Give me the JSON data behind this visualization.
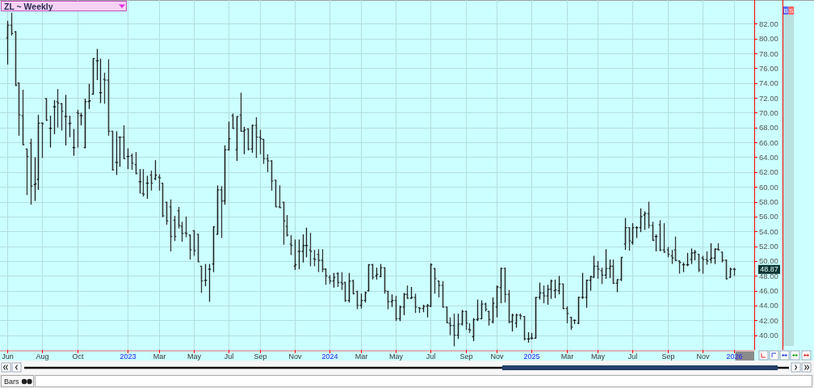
{
  "chart_data": {
    "type": "candlestick",
    "title": "ZL ~ Weekly",
    "grid": true,
    "x": [
      "2022-06-03",
      "2022-06-10",
      "2022-06-17",
      "2022-06-24",
      "2022-07-01",
      "2022-07-08",
      "2022-07-15",
      "2022-07-22",
      "2022-07-29",
      "2022-08-05",
      "2022-08-12",
      "2022-08-19",
      "2022-08-26",
      "2022-09-02",
      "2022-09-09",
      "2022-09-16",
      "2022-09-23",
      "2022-09-30",
      "2022-10-07",
      "2022-10-14",
      "2022-10-21",
      "2022-10-28",
      "2022-11-04",
      "2022-11-11",
      "2022-11-18",
      "2022-11-25",
      "2022-12-02",
      "2022-12-09",
      "2022-12-16",
      "2022-12-23",
      "2022-12-30",
      "2023-01-06",
      "2023-01-13",
      "2023-01-20",
      "2023-01-27",
      "2023-02-03",
      "2023-02-10",
      "2023-02-17",
      "2023-02-24",
      "2023-03-03",
      "2023-03-10",
      "2023-03-17",
      "2023-03-24",
      "2023-03-31",
      "2023-04-07",
      "2023-04-14",
      "2023-04-21",
      "2023-04-28",
      "2023-05-05",
      "2023-05-12",
      "2023-05-19",
      "2023-05-26",
      "2023-06-02",
      "2023-06-09",
      "2023-06-16",
      "2023-06-23",
      "2023-06-30",
      "2023-07-07",
      "2023-07-14",
      "2023-07-21",
      "2023-07-28",
      "2023-08-04",
      "2023-08-11",
      "2023-08-18",
      "2023-08-25",
      "2023-09-01",
      "2023-09-08",
      "2023-09-15",
      "2023-09-22",
      "2023-09-29",
      "2023-10-06",
      "2023-10-13",
      "2023-10-20",
      "2023-10-27",
      "2023-11-03",
      "2023-11-10",
      "2023-11-17",
      "2023-11-24",
      "2023-12-01",
      "2023-12-08",
      "2023-12-15",
      "2023-12-22",
      "2023-12-29",
      "2024-01-05",
      "2024-01-12",
      "2024-01-19",
      "2024-01-26",
      "2024-02-02",
      "2024-02-09",
      "2024-02-16",
      "2024-02-23",
      "2024-03-01",
      "2024-03-08",
      "2024-03-15",
      "2024-03-22",
      "2024-03-29",
      "2024-04-05",
      "2024-04-12",
      "2024-04-19",
      "2024-04-26",
      "2024-05-03",
      "2024-05-10",
      "2024-05-17",
      "2024-05-24",
      "2024-05-31",
      "2024-06-07",
      "2024-06-14",
      "2024-06-21",
      "2024-06-28",
      "2024-07-05",
      "2024-07-12",
      "2024-07-19",
      "2024-07-26",
      "2024-08-02",
      "2024-08-09",
      "2024-08-16",
      "2024-08-23",
      "2024-08-30",
      "2024-09-06",
      "2024-09-13",
      "2024-09-20",
      "2024-09-27",
      "2024-10-04",
      "2024-10-11",
      "2024-10-18",
      "2024-10-25",
      "2024-11-01",
      "2024-11-08",
      "2024-11-15",
      "2024-11-22",
      "2024-11-29",
      "2024-12-06",
      "2024-12-13",
      "2024-12-20",
      "2024-12-27",
      "2025-01-03",
      "2025-01-10",
      "2025-01-17",
      "2025-01-24",
      "2025-01-31",
      "2025-02-07",
      "2025-02-14",
      "2025-02-21",
      "2025-02-28",
      "2025-03-07",
      "2025-03-14",
      "2025-03-21",
      "2025-03-28",
      "2025-04-04",
      "2025-04-11",
      "2025-04-18",
      "2025-04-25",
      "2025-05-02",
      "2025-05-09",
      "2025-05-16",
      "2025-05-23",
      "2025-05-30",
      "2025-06-06",
      "2025-06-13",
      "2025-06-20",
      "2025-06-27",
      "2025-07-04",
      "2025-07-11",
      "2025-07-18",
      "2025-07-25",
      "2025-08-01",
      "2025-08-08",
      "2025-08-15",
      "2025-08-22",
      "2025-08-29",
      "2025-09-05",
      "2025-09-12",
      "2025-09-19",
      "2025-09-26",
      "2025-10-03",
      "2025-10-10",
      "2025-10-17",
      "2025-10-24",
      "2025-10-31",
      "2025-11-07",
      "2025-11-14",
      "2025-11-21",
      "2025-11-28",
      "2025-12-05",
      "2025-12-12",
      "2025-12-19",
      "2025-12-26",
      "2026-01-02"
    ],
    "ohlc": [
      [
        80.1,
        82.4,
        76.5,
        81.8
      ],
      [
        81.8,
        83.5,
        80.4,
        80.7
      ],
      [
        80.9,
        81.0,
        73.6,
        73.7
      ],
      [
        74.0,
        74.1,
        66.9,
        69.7
      ],
      [
        69.6,
        73.1,
        65.6,
        65.7
      ],
      [
        65.1,
        65.1,
        58.9,
        64.1
      ],
      [
        65.9,
        66.5,
        57.6,
        60.1
      ],
      [
        60.3,
        64.0,
        58.1,
        60.4
      ],
      [
        61.0,
        69.7,
        59.6,
        68.6
      ],
      [
        68.6,
        68.7,
        63.9,
        68.5
      ],
      [
        71.9,
        71.9,
        68.9,
        69.0
      ],
      [
        67.9,
        69.6,
        65.3,
        67.9
      ],
      [
        70.8,
        71.7,
        67.1,
        70.8
      ],
      [
        71.5,
        73.2,
        68.0,
        71.3
      ],
      [
        71.2,
        71.3,
        67.6,
        70.2
      ],
      [
        69.5,
        72.4,
        65.6,
        69.5
      ],
      [
        68.5,
        69.6,
        66.7,
        68.6
      ],
      [
        65.3,
        67.8,
        64.2,
        65.3
      ],
      [
        70.0,
        70.4,
        65.3,
        69.9
      ],
      [
        69.6,
        70.0,
        68.3,
        69.6
      ],
      [
        65.3,
        71.9,
        65.2,
        71.5
      ],
      [
        71.5,
        73.9,
        70.5,
        71.6
      ],
      [
        72.5,
        77.3,
        72.5,
        77.3
      ],
      [
        77.0,
        78.6,
        74.4,
        77.0
      ],
      [
        72.7,
        77.3,
        71.3,
        72.7
      ],
      [
        74.5,
        75.4,
        71.2,
        74.4
      ],
      [
        74.4,
        77.2,
        66.9,
        67.5
      ],
      [
        67.5,
        67.5,
        62.2,
        62.3
      ],
      [
        63.3,
        67.5,
        61.6,
        63.3
      ],
      [
        66.7,
        66.8,
        62.7,
        66.7
      ],
      [
        66.7,
        68.3,
        63.8,
        63.8
      ],
      [
        64.1,
        65.2,
        62.4,
        64.1
      ],
      [
        64.2,
        64.5,
        62.3,
        63.2
      ],
      [
        63.0,
        64.7,
        61.7,
        61.8
      ],
      [
        60.7,
        62.4,
        59.1,
        60.7
      ],
      [
        59.1,
        62.4,
        58.7,
        59.0
      ],
      [
        60.5,
        61.5,
        58.4,
        60.5
      ],
      [
        61.6,
        62.2,
        59.5,
        60.5
      ],
      [
        61.1,
        63.6,
        60.9,
        61.6
      ],
      [
        61.3,
        61.7,
        59.5,
        61.2
      ],
      [
        60.5,
        60.5,
        55.9,
        56.1
      ],
      [
        57.9,
        58.0,
        54.9,
        55.4
      ],
      [
        57.3,
        58.3,
        51.3,
        53.3
      ],
      [
        55.5,
        56.1,
        52.7,
        53.3
      ],
      [
        56.8,
        57.3,
        54.4,
        54.8
      ],
      [
        54.7,
        55.3,
        52.6,
        53.7
      ],
      [
        53.8,
        56.0,
        53.2,
        53.7
      ],
      [
        53.5,
        53.6,
        50.2,
        51.5
      ],
      [
        54.1,
        54.1,
        50.7,
        51.4
      ],
      [
        53.6,
        53.6,
        49.9,
        49.9
      ],
      [
        49.3,
        49.3,
        45.7,
        47.3
      ],
      [
        47.4,
        49.6,
        46.6,
        47.4
      ],
      [
        48.9,
        49.6,
        44.5,
        48.9
      ],
      [
        49.6,
        54.7,
        48.5,
        54.6
      ],
      [
        53.6,
        60.2,
        53.6,
        59.6
      ],
      [
        59.6,
        60.1,
        53.1,
        58.1
      ],
      [
        58.1,
        65.6,
        57.6,
        65.0
      ],
      [
        65.0,
        68.8,
        64.9,
        66.5
      ],
      [
        69.6,
        69.9,
        67.8,
        67.9
      ],
      [
        65.0,
        69.5,
        63.5,
        69.5
      ],
      [
        69.7,
        72.7,
        67.5,
        67.5
      ],
      [
        67.5,
        68.1,
        64.4,
        67.7
      ],
      [
        67.8,
        67.9,
        64.9,
        65.1
      ],
      [
        65.1,
        68.4,
        64.6,
        68.3
      ],
      [
        68.3,
        69.4,
        63.9,
        66.7
      ],
      [
        66.7,
        67.7,
        64.4,
        66.5
      ],
      [
        66.4,
        66.4,
        63.1,
        63.8
      ],
      [
        63.8,
        64.4,
        62.0,
        63.5
      ],
      [
        63.5,
        63.6,
        59.5,
        60.8
      ],
      [
        60.9,
        60.9,
        57.3,
        57.3
      ],
      [
        57.3,
        60.2,
        57.2,
        57.2
      ],
      [
        57.9,
        58.0,
        52.2,
        55.4
      ],
      [
        54.7,
        56.2,
        53.3,
        53.5
      ],
      [
        52.3,
        53.5,
        50.8,
        52.1
      ],
      [
        49.3,
        52.9,
        48.8,
        49.5
      ],
      [
        51.3,
        52.9,
        48.9,
        51.3
      ],
      [
        51.3,
        53.6,
        49.8,
        52.1
      ],
      [
        52.1,
        54.5,
        50.5,
        52.1
      ],
      [
        51.5,
        53.8,
        49.3,
        51.3
      ],
      [
        50.3,
        51.5,
        49.3,
        50.2
      ],
      [
        50.9,
        51.6,
        48.5,
        50.1
      ],
      [
        50.1,
        51.6,
        48.5,
        48.9
      ],
      [
        48.9,
        49.0,
        46.8,
        48.0
      ],
      [
        47.8,
        48.1,
        46.9,
        47.3
      ],
      [
        47.3,
        48.4,
        46.4,
        47.8
      ],
      [
        48.3,
        48.5,
        46.5,
        47.1
      ],
      [
        47.1,
        48.5,
        46.1,
        46.9
      ],
      [
        47.1,
        47.2,
        44.5,
        44.7
      ],
      [
        44.7,
        48.4,
        44.4,
        47.3
      ],
      [
        47.3,
        47.5,
        45.5,
        45.6
      ],
      [
        45.9,
        46.0,
        43.5,
        44.0
      ],
      [
        44.0,
        45.6,
        43.6,
        44.7
      ],
      [
        44.7,
        45.9,
        44.4,
        45.7
      ],
      [
        46.0,
        49.5,
        45.9,
        49.5
      ],
      [
        49.5,
        49.6,
        47.5,
        47.8
      ],
      [
        48.0,
        49.1,
        47.5,
        48.2
      ],
      [
        47.9,
        49.6,
        47.8,
        49.1
      ],
      [
        49.1,
        49.1,
        45.6,
        46.0
      ],
      [
        45.9,
        46.0,
        43.5,
        44.5
      ],
      [
        44.5,
        45.5,
        43.8,
        44.7
      ],
      [
        44.7,
        45.3,
        41.9,
        42.2
      ],
      [
        42.2,
        44.0,
        41.9,
        43.8
      ],
      [
        43.8,
        45.7,
        42.7,
        45.5
      ],
      [
        45.5,
        46.7,
        44.9,
        45.0
      ],
      [
        45.0,
        46.5,
        44.9,
        45.1
      ],
      [
        45.1,
        45.6,
        43.0,
        43.8
      ],
      [
        43.7,
        43.8,
        43.0,
        43.6
      ],
      [
        43.6,
        44.1,
        43.1,
        43.9
      ],
      [
        43.9,
        44.2,
        42.4,
        44.0
      ],
      [
        43.9,
        49.7,
        43.8,
        49.5
      ],
      [
        49.0,
        49.0,
        45.6,
        47.6
      ],
      [
        47.3,
        47.3,
        45.1,
        46.7
      ],
      [
        46.7,
        47.3,
        43.7,
        43.8
      ],
      [
        43.8,
        43.8,
        41.6,
        41.7
      ],
      [
        41.6,
        42.4,
        40.0,
        41.3
      ],
      [
        41.3,
        42.9,
        38.5,
        40.0
      ],
      [
        40.0,
        42.9,
        39.5,
        41.5
      ],
      [
        41.5,
        43.4,
        41.3,
        43.2
      ],
      [
        43.2,
        43.3,
        40.7,
        41.6
      ],
      [
        40.8,
        41.6,
        40.3,
        40.7
      ],
      [
        39.8,
        42.3,
        39.2,
        42.1
      ],
      [
        42.1,
        44.8,
        41.9,
        42.2
      ],
      [
        42.2,
        44.7,
        42.2,
        44.2
      ],
      [
        44.2,
        44.4,
        43.2,
        43.5
      ],
      [
        43.2,
        43.3,
        41.3,
        42.1
      ],
      [
        41.8,
        45.1,
        41.6,
        44.3
      ],
      [
        43.8,
        46.7,
        42.4,
        46.5
      ],
      [
        46.4,
        49.1,
        44.3,
        49.0
      ],
      [
        49.0,
        49.1,
        44.4,
        45.5
      ],
      [
        45.5,
        46.1,
        41.6,
        41.8
      ],
      [
        41.8,
        42.9,
        40.5,
        42.7
      ],
      [
        41.6,
        42.9,
        41.0,
        42.7
      ],
      [
        42.7,
        42.9,
        42.1,
        42.6
      ],
      [
        42.5,
        42.6,
        39.3,
        39.5
      ],
      [
        39.5,
        40.4,
        39.0,
        39.5
      ],
      [
        39.6,
        40.3,
        39.4,
        39.6
      ],
      [
        39.6,
        45.1,
        39.6,
        45.1
      ],
      [
        45.1,
        47.1,
        44.8,
        45.7
      ],
      [
        45.7,
        46.7,
        44.3,
        45.3
      ],
      [
        45.3,
        46.8,
        44.1,
        46.2
      ],
      [
        46.2,
        47.5,
        44.9,
        47.3
      ],
      [
        46.0,
        47.5,
        45.0,
        46.1
      ],
      [
        46.0,
        48.0,
        45.5,
        46.9
      ],
      [
        46.9,
        46.9,
        43.5,
        43.6
      ],
      [
        43.6,
        43.9,
        41.6,
        42.9
      ],
      [
        42.4,
        42.5,
        40.7,
        41.1
      ],
      [
        42.0,
        42.1,
        41.5,
        42.0
      ],
      [
        41.6,
        45.2,
        41.5,
        45.1
      ],
      [
        45.1,
        48.4,
        44.9,
        45.1
      ],
      [
        45.1,
        47.5,
        43.7,
        47.4
      ],
      [
        47.4,
        48.0,
        46.0,
        47.9
      ],
      [
        47.8,
        50.7,
        47.8,
        49.3
      ],
      [
        49.3,
        50.0,
        47.6,
        48.9
      ],
      [
        48.7,
        49.1,
        46.9,
        48.1
      ],
      [
        48.1,
        51.6,
        47.6,
        49.0
      ],
      [
        49.0,
        50.2,
        47.7,
        49.3
      ],
      [
        49.3,
        50.2,
        46.9,
        47.0
      ],
      [
        47.0,
        47.5,
        45.8,
        47.5
      ],
      [
        47.5,
        50.5,
        47.3,
        50.5
      ],
      [
        52.3,
        55.8,
        51.5,
        54.5
      ],
      [
        54.5,
        54.5,
        51.4,
        52.7
      ],
      [
        52.5,
        55.1,
        52.2,
        54.5
      ],
      [
        54.5,
        54.7,
        53.1,
        54.5
      ],
      [
        54.5,
        57.1,
        53.9,
        56.0
      ],
      [
        56.2,
        56.7,
        54.2,
        56.4
      ],
      [
        56.4,
        58.0,
        54.4,
        54.8
      ],
      [
        54.8,
        55.3,
        52.7,
        52.8
      ],
      [
        53.3,
        53.6,
        51.3,
        53.3
      ],
      [
        54.9,
        55.5,
        51.3,
        51.5
      ],
      [
        51.5,
        55.1,
        51.1,
        51.2
      ],
      [
        51.5,
        51.9,
        50.5,
        50.9
      ],
      [
        50.7,
        51.5,
        49.6,
        50.4
      ],
      [
        51.5,
        53.3,
        50.0,
        50.1
      ],
      [
        50.0,
        50.1,
        48.3,
        49.8
      ],
      [
        49.5,
        49.8,
        48.5,
        49.5
      ],
      [
        49.5,
        51.1,
        49.3,
        49.5
      ],
      [
        50.2,
        51.7,
        49.6,
        51.1
      ],
      [
        51.1,
        51.5,
        50.1,
        51.2
      ],
      [
        50.9,
        50.9,
        48.5,
        48.8
      ],
      [
        50.4,
        50.7,
        48.3,
        50.2
      ],
      [
        50.2,
        51.3,
        49.5,
        50.0
      ],
      [
        50.2,
        52.4,
        49.7,
        50.4
      ],
      [
        50.4,
        51.7,
        49.6,
        51.6
      ],
      [
        51.6,
        52.4,
        51.4,
        51.5
      ],
      [
        51.2,
        51.2,
        49.8,
        50.1
      ],
      [
        50.1,
        50.2,
        47.5,
        47.6
      ],
      [
        47.8,
        49.1,
        47.8,
        48.9
      ],
      [
        48.9,
        49.1,
        48.0,
        48.87
      ]
    ],
    "colors": [
      "#1e1e1e",
      "#333333",
      "#333333",
      "#333333",
      "#333333",
      "#333333",
      "#333333",
      "#1e1e1e",
      "#1e1e1e",
      "#333333",
      "#333333",
      "#1e1e1e",
      "#1e1e1e",
      "#333333",
      "#333333",
      "#1e1e1e",
      "#1e1e1e",
      "#1e1e1e",
      "#333333",
      "#1e1e1e",
      "#1e1e1e",
      "#1e1e1e",
      "#1e1e1e",
      "#1e1e1e",
      "#1e1e1e",
      "#333333",
      "#333333",
      "#333333",
      "#1e1e1e",
      "#1e1e1e",
      "#333333",
      "#1e1e1e",
      "#333333",
      "#333333",
      "#1e1e1e",
      "#333333",
      "#1e1e1e",
      "#333333",
      "#1e1e1e",
      "#333333",
      "#333333",
      "#333333",
      "#333333",
      "#333333",
      "#333333",
      "#333333",
      "#333333",
      "#333333",
      "#333333",
      "#333333",
      "#333333",
      "#1e1e1e",
      "#1e1e1e",
      "#1e1e1e",
      "#1e1e1e",
      "#333333",
      "#1e1e1e",
      "#1e1e1e",
      "#333333",
      "#1e1e1e",
      "#333333",
      "#1e1e1e",
      "#333333",
      "#1e1e1e",
      "#333333",
      "#333333",
      "#333333",
      "#333333",
      "#333333",
      "#333333",
      "#333333",
      "#333333",
      "#333333",
      "#333333",
      "#1e1e1e",
      "#1e1e1e",
      "#1e1e1e",
      "#1e1e1e",
      "#333333",
      "#333333",
      "#333333",
      "#333333",
      "#333333",
      "#333333",
      "#1e1e1e",
      "#333333",
      "#333333",
      "#333333",
      "#1e1e1e",
      "#333333",
      "#333333",
      "#1e1e1e",
      "#1e1e1e",
      "#1e1e1e",
      "#333333",
      "#1e1e1e",
      "#1e1e1e",
      "#333333",
      "#333333",
      "#1e1e1e",
      "#333333",
      "#1e1e1e",
      "#1e1e1e",
      "#333333",
      "#1e1e1e",
      "#333333",
      "#333333",
      "#1e1e1e",
      "#1e1e1e",
      "#1e1e1e",
      "#333333",
      "#333333",
      "#333333",
      "#333333",
      "#333333",
      "#333333",
      "#1e1e1e",
      "#1e1e1e",
      "#333333",
      "#333333",
      "#1e1e1e",
      "#1e1e1e",
      "#1e1e1e",
      "#333333",
      "#333333",
      "#1e1e1e",
      "#1e1e1e",
      "#1e1e1e",
      "#333333",
      "#333333",
      "#1e1e1e",
      "#1e1e1e",
      "#333333",
      "#333333",
      "#1e1e1e",
      "#1e1e1e",
      "#1e1e1e",
      "#1e1e1e",
      "#333333",
      "#1e1e1e",
      "#1e1e1e",
      "#1e1e1e",
      "#1e1e1e",
      "#333333",
      "#333333",
      "#333333",
      "#1e1e1e",
      "#1e1e1e",
      "#1e1e1e",
      "#1e1e1e",
      "#1e1e1e",
      "#1e1e1e",
      "#333333",
      "#333333",
      "#1e1e1e",
      "#1e1e1e",
      "#333333",
      "#1e1e1e",
      "#1e1e1e",
      "#1e1e1e",
      "#333333",
      "#1e1e1e",
      "#1e1e1e",
      "#1e1e1e",
      "#1e1e1e",
      "#333333",
      "#333333",
      "#1e1e1e",
      "#333333",
      "#333333",
      "#333333",
      "#333333",
      "#333333",
      "#333333",
      "#1e1e1e",
      "#1e1e1e",
      "#1e1e1e",
      "#1e1e1e",
      "#333333",
      "#333333",
      "#333333",
      "#1e1e1e",
      "#1e1e1e",
      "#333333",
      "#333333",
      "#333333",
      "#1e1e1e",
      "#333333"
    ],
    "xlim": [
      "2022-05-21",
      "2026-02-08"
    ],
    "xticks": [
      {
        "value": "2022-06-03",
        "label": "Jun"
      },
      {
        "value": "2022-08-05",
        "label": "Aug"
      },
      {
        "value": "2022-10-07",
        "label": "Oct"
      },
      {
        "value": "2023-01-06",
        "label": "2023"
      },
      {
        "value": "2023-03-03",
        "label": "Mar"
      },
      {
        "value": "2023-05-05",
        "label": "May"
      },
      {
        "value": "2023-07-07",
        "label": "Jul"
      },
      {
        "value": "2023-09-01",
        "label": "Sep"
      },
      {
        "value": "2023-11-03",
        "label": "Nov"
      },
      {
        "value": "2024-01-05",
        "label": "2024"
      },
      {
        "value": "2024-03-01",
        "label": "Mar"
      },
      {
        "value": "2024-05-03",
        "label": "May"
      },
      {
        "value": "2024-07-05",
        "label": "Jul"
      },
      {
        "value": "2024-09-06",
        "label": "Sep"
      },
      {
        "value": "2024-11-01",
        "label": "Nov"
      },
      {
        "value": "2025-01-03",
        "label": "2025"
      },
      {
        "value": "2025-03-07",
        "label": "Mar"
      },
      {
        "value": "2025-05-02",
        "label": "May"
      },
      {
        "value": "2025-07-04",
        "label": "Jul"
      },
      {
        "value": "2025-09-05",
        "label": "Sep"
      },
      {
        "value": "2025-11-07",
        "label": "Nov"
      },
      {
        "value": "2026-01-02",
        "label": "2026"
      }
    ],
    "ylim": [
      38,
      85.2
    ],
    "yticks": [
      {
        "value": 40,
        "label": "40.00"
      },
      {
        "value": 42,
        "label": "42.00"
      },
      {
        "value": 44,
        "label": "44.00"
      },
      {
        "value": 46,
        "label": "46.00"
      },
      {
        "value": 48,
        "label": "48.00"
      },
      {
        "value": 50,
        "label": "50.00"
      },
      {
        "value": 52,
        "label": "52.00"
      },
      {
        "value": 54,
        "label": "54.00"
      },
      {
        "value": 56,
        "label": "56.00"
      },
      {
        "value": 58,
        "label": "58.00"
      },
      {
        "value": 60,
        "label": "60.00"
      },
      {
        "value": 62,
        "label": "62.00"
      },
      {
        "value": 64,
        "label": "64.00"
      },
      {
        "value": 66,
        "label": "66.00"
      },
      {
        "value": 68,
        "label": "68.00"
      },
      {
        "value": 70,
        "label": "70.00"
      },
      {
        "value": 72,
        "label": "72.00"
      },
      {
        "value": 74,
        "label": "74.00"
      },
      {
        "value": 76,
        "label": "76.00"
      },
      {
        "value": 78,
        "label": "78.00"
      },
      {
        "value": 80,
        "label": "80.00"
      },
      {
        "value": 82,
        "label": "82.00"
      }
    ],
    "annotations": [
      "48.87",
      "Bars",
      "B",
      "S"
    ]
  }
}
